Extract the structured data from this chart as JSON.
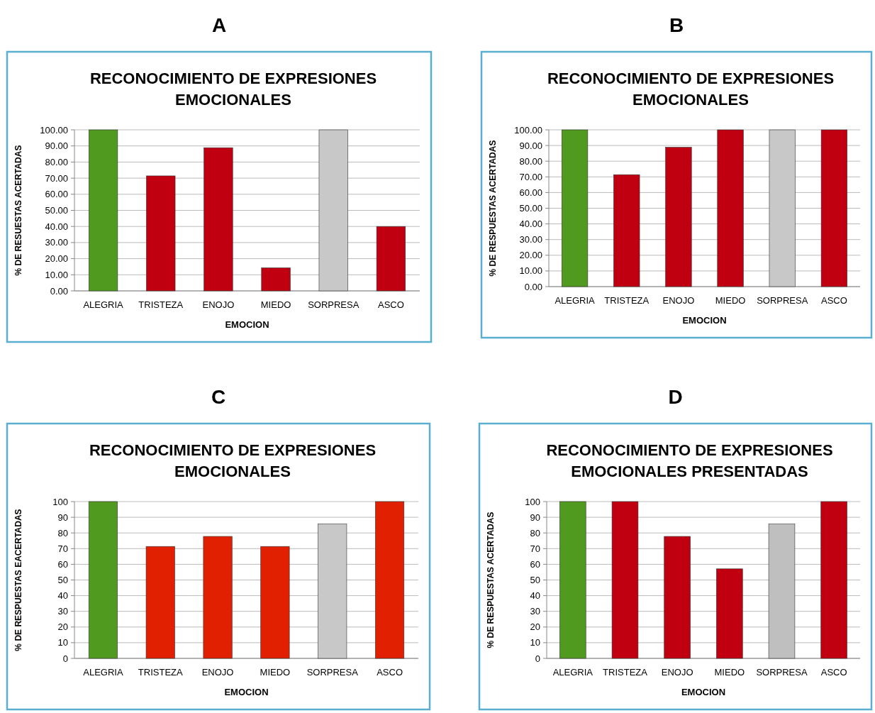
{
  "chart_data": [
    {
      "type": "bar",
      "annotations": [
        "A"
      ],
      "title": "RECONOCIMIENTO DE EXPRESIONES EMOCIONALES",
      "xlabel": "EMOCION",
      "ylabel": "% DE RESUESTAS ACERTADAS",
      "categories": [
        "ALEGRIA",
        "TRISTEZA",
        "ENOJO",
        "MIEDO",
        "SORPRESA",
        "ASCO"
      ],
      "values": [
        100,
        71.4,
        88.9,
        14.3,
        100,
        40
      ],
      "colors": [
        "#4f9a1f",
        "#c00010",
        "#c00010",
        "#c00010",
        "#c8c8c8",
        "#c00010"
      ],
      "ylim": [
        0,
        100
      ],
      "yticks": [
        {
          "value": 0,
          "label": "0.00"
        },
        {
          "value": 10,
          "label": "10.00"
        },
        {
          "value": 20,
          "label": "20.00"
        },
        {
          "value": 30,
          "label": "30.00"
        },
        {
          "value": 40,
          "label": "40.00"
        },
        {
          "value": 50,
          "label": "50.00"
        },
        {
          "value": 60,
          "label": "60.00"
        },
        {
          "value": 70,
          "label": "70.00"
        },
        {
          "value": 80,
          "label": "80.00"
        },
        {
          "value": 90,
          "label": "90.00"
        },
        {
          "value": 100,
          "label": "100.00"
        }
      ],
      "grid": "y"
    },
    {
      "type": "bar",
      "annotations": [
        "B"
      ],
      "title": "RECONOCIMIENTO DE EXPRESIONES EMOCIONALES",
      "xlabel": "EMOCION",
      "ylabel": "% DE RESPUESTAS ACERTADAS",
      "categories": [
        "ALEGRIA",
        "TRISTEZA",
        "ENOJO",
        "MIEDO",
        "SORPRESA",
        "ASCO"
      ],
      "values": [
        100,
        71.4,
        88.9,
        100,
        100,
        100
      ],
      "colors": [
        "#4f9a1f",
        "#c00010",
        "#c00010",
        "#c00010",
        "#c8c8c8",
        "#c00010"
      ],
      "ylim": [
        0,
        100
      ],
      "yticks": [
        {
          "value": 0,
          "label": "0.00"
        },
        {
          "value": 10,
          "label": "10.00"
        },
        {
          "value": 20,
          "label": "20.00"
        },
        {
          "value": 30,
          "label": "30.00"
        },
        {
          "value": 40,
          "label": "40.00"
        },
        {
          "value": 50,
          "label": "50.00"
        },
        {
          "value": 60,
          "label": "60.00"
        },
        {
          "value": 70,
          "label": "70.00"
        },
        {
          "value": 80,
          "label": "80.00"
        },
        {
          "value": 90,
          "label": "90.00"
        },
        {
          "value": 100,
          "label": "100.00"
        }
      ],
      "grid": "y"
    },
    {
      "type": "bar",
      "annotations": [
        "C"
      ],
      "title": "RECONOCIMIENTO DE EXPRESIONES EMOCIONALES",
      "xlabel": "EMOCION",
      "ylabel": "% DE RESPUESTAS EACERTADAS",
      "categories": [
        "ALEGRIA",
        "TRISTEZA",
        "ENOJO",
        "MIEDO",
        "SORPRESA",
        "ASCO"
      ],
      "values": [
        100,
        71.4,
        77.8,
        71.4,
        85.7,
        100
      ],
      "colors": [
        "#4f9a1f",
        "#e02000",
        "#e02000",
        "#e02000",
        "#c8c8c8",
        "#e02000"
      ],
      "ylim": [
        0,
        100
      ],
      "yticks": [
        0,
        10,
        20,
        30,
        40,
        50,
        60,
        70,
        80,
        90,
        100
      ],
      "grid": "y"
    },
    {
      "type": "bar",
      "annotations": [
        "D"
      ],
      "title": "RECONOCIMIENTO DE EXPRESIONES EMOCIONALES PRESENTADAS",
      "xlabel": "EMOCION",
      "ylabel": "% DE RESPUESTAS ACERTADAS",
      "categories": [
        "ALEGRIA",
        "TRISTEZA",
        "ENOJO",
        "MIEDO",
        "SORPRESA",
        "ASCO"
      ],
      "values": [
        100,
        100,
        77.8,
        57.1,
        85.7,
        100
      ],
      "colors": [
        "#4f9a1f",
        "#c00010",
        "#c00010",
        "#c00010",
        "#bfbfbf",
        "#c00010"
      ],
      "ylim": [
        0,
        100
      ],
      "yticks": [
        0,
        10,
        20,
        30,
        40,
        50,
        60,
        70,
        80,
        90,
        100
      ],
      "grid": "y"
    }
  ]
}
